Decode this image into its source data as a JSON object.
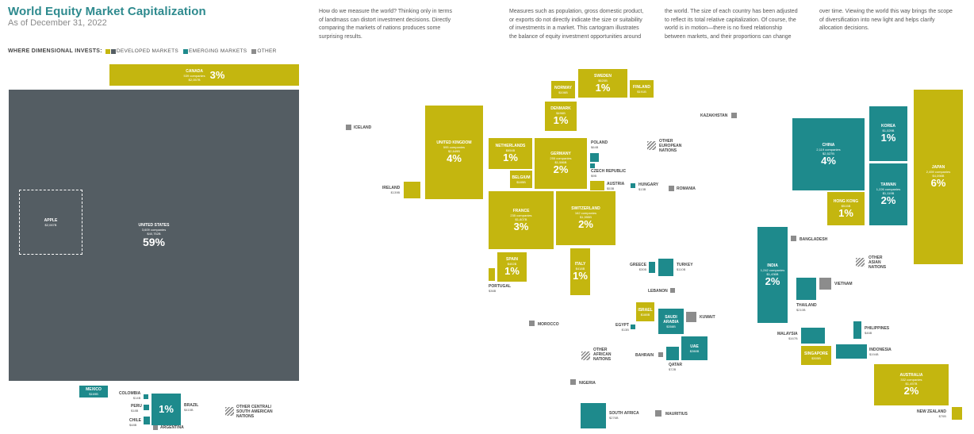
{
  "header": {
    "title": "World Equity Market Capitalization",
    "subtitle": "As of December 31, 2022"
  },
  "legend": {
    "label": "WHERE DIMENSIONAL INVESTS:",
    "items": [
      {
        "label": "DEVELOPED MARKETS",
        "color": "#c4b60f"
      },
      {
        "label": "EMERGING MARKETS",
        "color": "#1e8a8c"
      },
      {
        "label": "OTHER",
        "color": "#8c8c8c"
      }
    ]
  },
  "intro": {
    "p1": "How do we measure the world? Thinking only in terms of landmass can distort investment decisions. Directly comparing the markets of nations produces some surprising results.",
    "p2": "Measures such as population, gross domestic product, or exports do not directly indicate the size or suitability of investments in a market. This cartogram illustrates the balance of equity investment opportunities around",
    "p3": "the world. The size of each country has been adjusted to reflect its total relative capitalization. Of course, the world is in motion—there is no fixed relationship between markets, and their proportions can change",
    "p4": "over time. Viewing the world this way brings the scope of diversification into new light and helps clarify allocation decisions."
  },
  "countries": {
    "us": {
      "name": "UNITED STATES",
      "companies": "3,609 companies",
      "cap": "$40,752B",
      "pct": "59%"
    },
    "apple": {
      "name": "APPLE",
      "cap": "$2,067B"
    },
    "canada": {
      "name": "CANADA",
      "companies": "539 companies",
      "cap": "$2,057B",
      "pct": "3%"
    },
    "mexico": {
      "name": "MEXICO",
      "cap": "$169B"
    },
    "colombia": {
      "name": "COLOMBIA",
      "cap": "$14B"
    },
    "peru": {
      "name": "PERU",
      "cap": "$18B"
    },
    "chile": {
      "name": "CHILE",
      "cap": "$48B"
    },
    "brazil": {
      "name": "BRAZIL",
      "cap": "$415B",
      "pct": "1%"
    },
    "argentina": {
      "name": "ARGENTINA"
    },
    "other_csa": {
      "name": "OTHER CENTRAL/ SOUTH AMERICAN NATIONS"
    },
    "iceland": {
      "name": "ICELAND"
    },
    "ireland": {
      "name": "IRELAND",
      "cap": "$139B"
    },
    "uk": {
      "name": "UNITED KINGDOM",
      "companies": "595 companies",
      "cap": "$2,649B",
      "pct": "4%"
    },
    "norway": {
      "name": "NORWAY",
      "cap": "$106B"
    },
    "sweden": {
      "name": "SWEDEN",
      "cap": "$620B",
      "pct": "1%"
    },
    "finland": {
      "name": "FINLAND",
      "cap": "$191B"
    },
    "denmark": {
      "name": "DENMARK",
      "cap": "$496B",
      "pct": "1%"
    },
    "netherlands": {
      "name": "NETHERLANDS",
      "cap": "$654B",
      "pct": "1%"
    },
    "germany": {
      "name": "GERMANY",
      "companies": "255 companies",
      "cap": "$1,586B",
      "pct": "2%"
    },
    "belgium": {
      "name": "BELGIUM",
      "cap": "$185B"
    },
    "poland": {
      "name": "POLAND",
      "cap": "$64B"
    },
    "czech": {
      "name": "CZECH REPUBLIC",
      "cap": "$9B"
    },
    "austria": {
      "name": "AUSTRIA",
      "cap": "$53B"
    },
    "hungary": {
      "name": "HUNGARY",
      "cap": "$13B"
    },
    "romania": {
      "name": "ROMANIA"
    },
    "other_eu": {
      "name": "OTHER EUROPEAN NATIONS"
    },
    "kazakhstan": {
      "name": "KAZAKHSTAN"
    },
    "france": {
      "name": "FRANCE",
      "companies": "235 companies",
      "cap": "$1,807B",
      "pct": "3%"
    },
    "switzerland": {
      "name": "SWITZERLAND",
      "companies": "162 companies",
      "cap": "$1,555B",
      "pct": "2%"
    },
    "spain": {
      "name": "SPAIN",
      "cap": "$402B",
      "pct": "1%"
    },
    "portugal": {
      "name": "PORTUGAL",
      "cap": "$36B"
    },
    "italy": {
      "name": "ITALY",
      "cap": "$418B",
      "pct": "1%"
    },
    "greece": {
      "name": "GREECE",
      "cap": "$30B"
    },
    "turkey": {
      "name": "TURKEY",
      "cap": "$110B"
    },
    "lebanon": {
      "name": "LEBANON"
    },
    "israel": {
      "name": "ISRAEL",
      "cap": "$188B"
    },
    "saudi": {
      "name": "SAUDI ARABIA",
      "cap": "$358B"
    },
    "kuwait": {
      "name": "KUWAIT"
    },
    "egypt": {
      "name": "EGYPT",
      "cap": "$13B"
    },
    "morocco": {
      "name": "MOROCCO"
    },
    "bahrain": {
      "name": "BAHRAIN"
    },
    "uae": {
      "name": "UAE",
      "cap": "$288B"
    },
    "qatar": {
      "name": "QATAR",
      "cap": "$72B"
    },
    "other_af": {
      "name": "OTHER AFRICAN NATIONS"
    },
    "nigeria": {
      "name": "NIGERIA"
    },
    "south_africa": {
      "name": "SOUTH AFRICA",
      "cap": "$276B"
    },
    "mauritius": {
      "name": "MAURITIUS"
    },
    "china": {
      "name": "CHINA",
      "companies": "2,119 companies",
      "cap": "$2,527B",
      "pct": "4%"
    },
    "korea": {
      "name": "KOREA",
      "cap": "$1,029B",
      "pct": "1%"
    },
    "taiwan": {
      "name": "TAIWAN",
      "companies": "1,226 companies",
      "cap": "$1,119B",
      "pct": "2%"
    },
    "hongkong": {
      "name": "HONG KONG",
      "cap": "$515B",
      "pct": "1%"
    },
    "japan": {
      "name": "JAPAN",
      "companies": "2,459 companies",
      "cap": "$4,098B",
      "pct": "6%"
    },
    "india": {
      "name": "INDIA",
      "companies": "1,242 companies",
      "cap": "$1,436B",
      "pct": "2%"
    },
    "bangladesh": {
      "name": "BANGLADESH"
    },
    "other_asia": {
      "name": "OTHER ASIAN NATIONS"
    },
    "thailand": {
      "name": "THAILAND",
      "cap": "$210B"
    },
    "vietnam": {
      "name": "VIETNAM"
    },
    "malaysia": {
      "name": "MALAYSIA",
      "cap": "$167B"
    },
    "philippines": {
      "name": "PHILIPPINES",
      "cap": "$46B"
    },
    "singapore": {
      "name": "SINGAPORE",
      "cap": "$305B"
    },
    "indonesia": {
      "name": "INDONESIA",
      "cap": "$194B"
    },
    "australia": {
      "name": "AUSTRALIA",
      "companies": "332 companies",
      "cap": "$1,457B",
      "pct": "2%"
    },
    "newzealand": {
      "name": "NEW ZEALAND",
      "cap": "$70B"
    }
  }
}
